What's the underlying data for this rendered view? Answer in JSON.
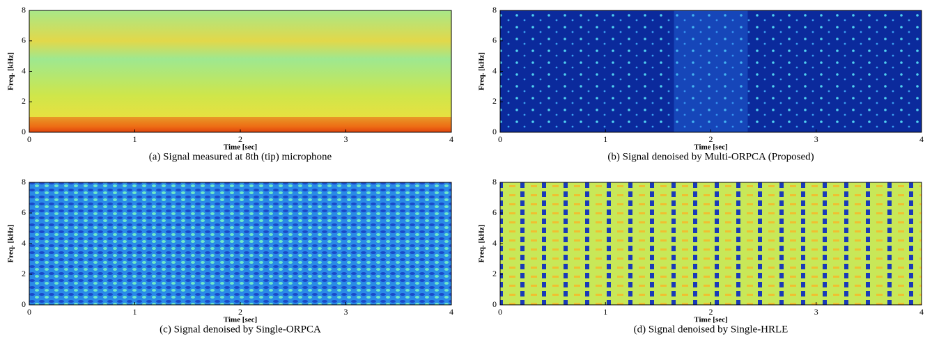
{
  "chart_data": [
    {
      "type": "heatmap",
      "title": "(a) Signal measured at 8th (tip) microphone",
      "xlabel": "Time [sec]",
      "ylabel": "Freq. [kHz]",
      "xlim": [
        0,
        4
      ],
      "ylim": [
        0,
        8
      ],
      "xticks": [
        0,
        1,
        2,
        3,
        4
      ],
      "yticks": [
        0,
        2,
        4,
        6,
        8
      ]
    },
    {
      "type": "heatmap",
      "title": "(b) Signal denoised by Multi-ORPCA (Proposed)",
      "xlabel": "Time [sec]",
      "ylabel": "Freq. [kHz]",
      "xlim": [
        0,
        4
      ],
      "ylim": [
        0,
        8
      ],
      "xticks": [
        0,
        1,
        2,
        3,
        4
      ],
      "yticks": [
        0,
        2,
        4,
        6,
        8
      ]
    },
    {
      "type": "heatmap",
      "title": "(c) Signal denoised by Single-ORPCA",
      "xlabel": "Time [sec]",
      "ylabel": "Freq. [kHz]",
      "xlim": [
        0,
        4
      ],
      "ylim": [
        0,
        8
      ],
      "xticks": [
        0,
        1,
        2,
        3,
        4
      ],
      "yticks": [
        0,
        2,
        4,
        6,
        8
      ]
    },
    {
      "type": "heatmap",
      "title": "(d) Signal denoised by Single-HRLE",
      "xlabel": "Time [sec]",
      "ylabel": "Freq. [kHz]",
      "xlim": [
        0,
        4
      ],
      "ylim": [
        0,
        8
      ],
      "xticks": [
        0,
        1,
        2,
        3,
        4
      ],
      "yticks": [
        0,
        2,
        4,
        6,
        8
      ]
    }
  ]
}
